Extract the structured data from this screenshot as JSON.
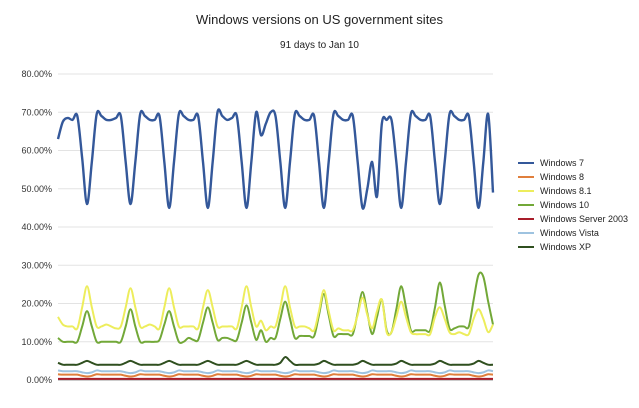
{
  "chart_data": {
    "type": "line",
    "title": "Windows versions on US government sites",
    "subtitle": "91 days to Jan 10",
    "xlabel": "",
    "ylabel": "",
    "ylim": [
      0,
      80
    ],
    "y_ticks": [
      "0.00%",
      "10.00%",
      "20.00%",
      "30.00%",
      "40.00%",
      "50.00%",
      "60.00%",
      "70.00%",
      "80.00%"
    ],
    "grid": true,
    "legend_position": "right",
    "days": 91,
    "series": [
      {
        "name": "Windows 7",
        "color": "#34589a",
        "values": [
          63,
          67.5,
          68.5,
          68,
          69,
          58,
          46,
          57,
          69.5,
          69,
          68,
          68,
          68.5,
          69,
          57,
          46,
          57,
          69.5,
          69,
          68,
          68,
          69,
          57,
          45,
          57,
          69.5,
          69,
          68,
          68,
          69,
          57,
          45,
          57,
          70,
          69,
          68,
          68.5,
          69,
          57,
          45,
          57,
          70,
          64,
          67,
          70,
          69,
          57,
          45,
          57,
          69.5,
          69,
          68,
          68,
          69,
          57,
          45,
          57,
          69.5,
          69,
          68,
          68,
          69,
          57,
          45,
          50,
          57,
          48,
          67,
          68,
          68,
          57,
          45,
          57,
          69.5,
          69,
          68,
          68,
          69,
          57,
          46,
          57,
          69.5,
          69,
          68,
          68,
          69,
          57,
          45,
          57,
          69.5,
          49
        ]
      },
      {
        "name": "Windows 8",
        "color": "#e07f3c",
        "values": [
          1.5,
          1.4,
          1.4,
          1.4,
          1.4,
          1.1,
          0.9,
          1.1,
          1.5,
          1.4,
          1.4,
          1.4,
          1.4,
          1.4,
          1.1,
          0.9,
          1.1,
          1.5,
          1.4,
          1.4,
          1.4,
          1.4,
          1.1,
          0.9,
          1.1,
          1.5,
          1.4,
          1.4,
          1.4,
          1.4,
          1.1,
          0.9,
          1.1,
          1.5,
          1.4,
          1.4,
          1.4,
          1.4,
          1.1,
          0.9,
          1.1,
          1.5,
          1.4,
          1.4,
          1.4,
          1.4,
          1.1,
          0.9,
          1.1,
          1.5,
          1.4,
          1.4,
          1.4,
          1.4,
          1.1,
          0.9,
          1.1,
          1.5,
          1.4,
          1.4,
          1.4,
          1.4,
          1.1,
          0.9,
          1.1,
          1.5,
          1.4,
          1.4,
          1.4,
          1.4,
          1.1,
          0.9,
          1.1,
          1.5,
          1.4,
          1.4,
          1.4,
          1.4,
          1.1,
          0.9,
          1.1,
          1.5,
          1.4,
          1.4,
          1.4,
          1.4,
          1.1,
          0.9,
          1.1,
          1.5,
          1.4
        ]
      },
      {
        "name": "Windows 8.1",
        "color": "#eded5c",
        "values": [
          16.5,
          14.5,
          14,
          14,
          13.5,
          19,
          24.5,
          19,
          14,
          14,
          14.5,
          14,
          13.5,
          14,
          19,
          24,
          19,
          14,
          14,
          14.5,
          14,
          13.5,
          19,
          24,
          19,
          14,
          14,
          14,
          14,
          13.5,
          19,
          23.5,
          19,
          14,
          14,
          14,
          14,
          13.5,
          19,
          24.5,
          19,
          14,
          15.5,
          13,
          14,
          14,
          19,
          24.5,
          19,
          14,
          14,
          14,
          13.5,
          13,
          18,
          23.5,
          18,
          13,
          13.5,
          13,
          13,
          13,
          17,
          21.5,
          17,
          13.5,
          18,
          21,
          12.5,
          12.5,
          16.5,
          20.5,
          16.5,
          12.5,
          12,
          12,
          12,
          12,
          16.5,
          19,
          16,
          12.5,
          12,
          12.5,
          12,
          12,
          16,
          18.5,
          16,
          12.5,
          14.5
        ]
      },
      {
        "name": "Windows 10",
        "color": "#72a838",
        "values": [
          11,
          10,
          10,
          10,
          10,
          14,
          18,
          14,
          10,
          10,
          10,
          10,
          10,
          10,
          14,
          18.5,
          14,
          10,
          10,
          10,
          10,
          10.5,
          14.5,
          18,
          14,
          10,
          10,
          11,
          10.5,
          10.5,
          15,
          19,
          15,
          10.5,
          11,
          11,
          10.5,
          10.5,
          15,
          19.5,
          15,
          10.5,
          13,
          10,
          11,
          11,
          16,
          20.5,
          16,
          11,
          11.5,
          11.5,
          11.5,
          11.5,
          17,
          22.5,
          17,
          11.5,
          12,
          12,
          12,
          12,
          17.5,
          23,
          17.5,
          12,
          16.5,
          21,
          13,
          12.5,
          18.5,
          24.5,
          19,
          13,
          13,
          13,
          13,
          13,
          19,
          25.5,
          19.5,
          13.5,
          13.5,
          14,
          14,
          14,
          21,
          27.5,
          27,
          20.5,
          14.5
        ]
      },
      {
        "name": "Windows Server 2003",
        "color": "#a81d2a",
        "values": [
          0.3,
          0.3,
          0.3,
          0.3,
          0.3,
          0.3,
          0.3,
          0.3,
          0.3,
          0.3,
          0.3,
          0.3,
          0.3,
          0.3,
          0.3,
          0.3,
          0.3,
          0.3,
          0.3,
          0.3,
          0.3,
          0.3,
          0.3,
          0.3,
          0.3,
          0.3,
          0.3,
          0.3,
          0.3,
          0.3,
          0.3,
          0.3,
          0.3,
          0.3,
          0.3,
          0.3,
          0.3,
          0.3,
          0.3,
          0.3,
          0.3,
          0.3,
          0.3,
          0.3,
          0.3,
          0.3,
          0.3,
          0.3,
          0.3,
          0.3,
          0.3,
          0.3,
          0.3,
          0.3,
          0.3,
          0.3,
          0.3,
          0.3,
          0.3,
          0.3,
          0.3,
          0.3,
          0.3,
          0.3,
          0.3,
          0.3,
          0.3,
          0.3,
          0.3,
          0.3,
          0.3,
          0.3,
          0.3,
          0.3,
          0.3,
          0.3,
          0.3,
          0.3,
          0.3,
          0.3,
          0.3,
          0.3,
          0.3,
          0.3,
          0.3,
          0.3,
          0.3,
          0.3,
          0.3,
          0.3,
          0.3
        ]
      },
      {
        "name": "Windows Vista",
        "color": "#9ec3e0",
        "values": [
          2.5,
          2.3,
          2.3,
          2.3,
          2.3,
          2.0,
          1.8,
          2.0,
          2.5,
          2.3,
          2.3,
          2.3,
          2.3,
          2.3,
          2.0,
          1.8,
          2.0,
          2.5,
          2.3,
          2.3,
          2.3,
          2.3,
          2.0,
          1.8,
          2.0,
          2.5,
          2.3,
          2.3,
          2.3,
          2.3,
          2.0,
          1.8,
          2.0,
          2.5,
          2.3,
          2.3,
          2.3,
          2.3,
          2.0,
          1.8,
          2.0,
          2.5,
          2.3,
          2.3,
          2.3,
          2.3,
          2.0,
          1.8,
          2.0,
          2.5,
          2.3,
          2.3,
          2.3,
          2.3,
          2.0,
          1.8,
          2.0,
          2.5,
          2.3,
          2.3,
          2.3,
          2.3,
          2.0,
          1.8,
          2.0,
          2.5,
          2.3,
          2.3,
          2.3,
          2.3,
          2.0,
          1.8,
          2.0,
          2.5,
          2.3,
          2.3,
          2.3,
          2.3,
          2.0,
          1.8,
          2.0,
          2.5,
          2.3,
          2.3,
          2.3,
          2.3,
          2.0,
          1.8,
          2.0,
          2.5,
          2.3
        ]
      },
      {
        "name": "Windows XP",
        "color": "#2f4f1f",
        "values": [
          4.5,
          4,
          4,
          4,
          4,
          4.5,
          5,
          4.5,
          4,
          4,
          4,
          4,
          4,
          4,
          4.5,
          5,
          4.5,
          4,
          4,
          4,
          4,
          4,
          4.5,
          5,
          4.5,
          4,
          4,
          4,
          4,
          4,
          4.5,
          5,
          4.5,
          4,
          4,
          4,
          4,
          4,
          4.5,
          5,
          4.5,
          4,
          4,
          4,
          4,
          4,
          4.5,
          6,
          5,
          4,
          4,
          4,
          4,
          4,
          4.3,
          5,
          4.5,
          4,
          4,
          4,
          4,
          4,
          4.3,
          5,
          4.5,
          4,
          4,
          4,
          4,
          4,
          4.3,
          5,
          4.5,
          4,
          4,
          4,
          4,
          4,
          4.3,
          5,
          4.5,
          4,
          4,
          4,
          4,
          4,
          4.3,
          5,
          4.5,
          4,
          4
        ]
      }
    ]
  }
}
